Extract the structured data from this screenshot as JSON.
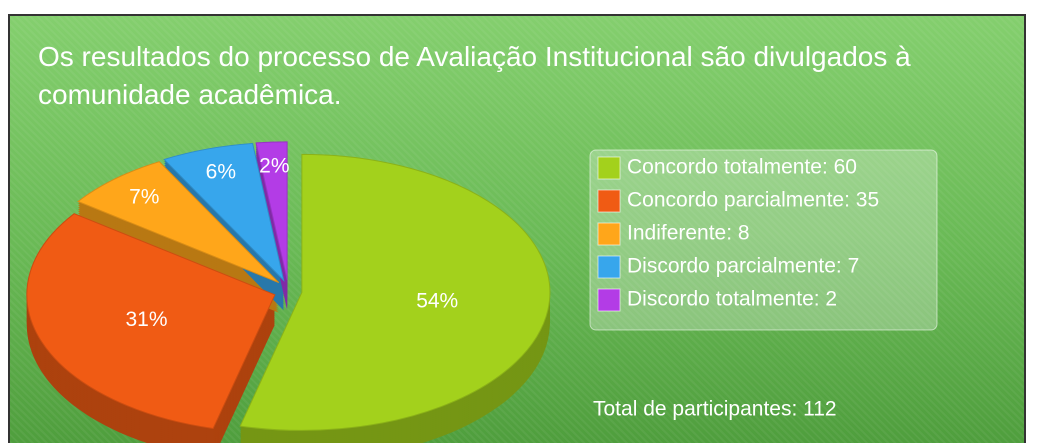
{
  "chart_data": {
    "type": "pie",
    "title": "Os resultados do processo de Avaliação Institucional são divulgados à comunidade acadêmica.",
    "categories": [
      "Concordo totalmente: 60",
      "Concordo parcialmente: 35",
      "Indiferente: 8",
      "Discordo parcialmente: 7",
      "Discordo totalmente: 2"
    ],
    "values": [
      54,
      31,
      7,
      6,
      2
    ],
    "value_labels": [
      "54%",
      "31%",
      "7%",
      "6%",
      "2%"
    ],
    "colors": [
      "#a3d11c",
      "#f05b14",
      "#ffa61a",
      "#37a6ec",
      "#b33ce6"
    ],
    "annotation": "Total de participantes: 112"
  }
}
